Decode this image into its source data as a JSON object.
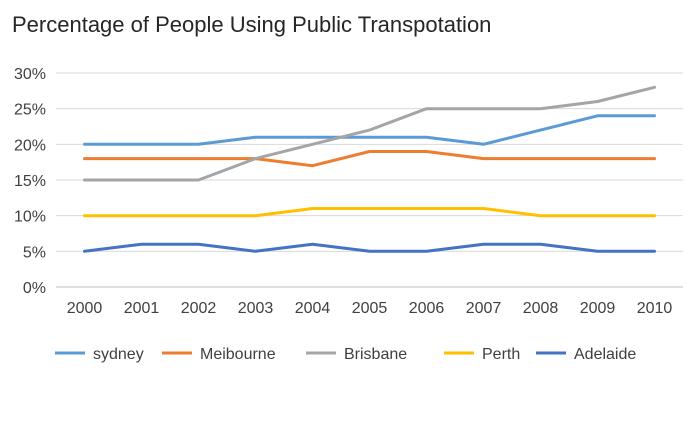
{
  "chart_data": {
    "type": "line",
    "title": "Percentage of People Using Public Transpotation",
    "xlabel": "",
    "ylabel": "",
    "categories": [
      "2000",
      "2001",
      "2002",
      "2003",
      "2004",
      "2005",
      "2006",
      "2007",
      "2008",
      "2009",
      "2010"
    ],
    "ylim": [
      0,
      30
    ],
    "y_ticks": [
      0,
      5,
      10,
      15,
      20,
      25,
      30
    ],
    "y_tick_labels": [
      "0%",
      "5%",
      "10%",
      "15%",
      "20%",
      "25%",
      "30%"
    ],
    "grid": true,
    "legend_position": "bottom",
    "series": [
      {
        "name": "sydney",
        "color": "#5b9bd5",
        "values": [
          20,
          20,
          20,
          21,
          21,
          21,
          21,
          20,
          22,
          24,
          24
        ]
      },
      {
        "name": "Meibourne",
        "color": "#ed7d31",
        "values": [
          18,
          18,
          18,
          18,
          17,
          19,
          19,
          18,
          18,
          18,
          18
        ]
      },
      {
        "name": "Brisbane",
        "color": "#a5a5a5",
        "values": [
          15,
          15,
          15,
          18,
          20,
          22,
          25,
          25,
          25,
          26,
          28
        ]
      },
      {
        "name": "Perth",
        "color": "#ffc000",
        "values": [
          10,
          10,
          10,
          10,
          11,
          11,
          11,
          11,
          10,
          10,
          10
        ]
      },
      {
        "name": "Adelaide",
        "color": "#4472c4",
        "values": [
          5,
          6,
          6,
          5,
          6,
          5,
          5,
          6,
          6,
          5,
          5
        ]
      }
    ]
  }
}
